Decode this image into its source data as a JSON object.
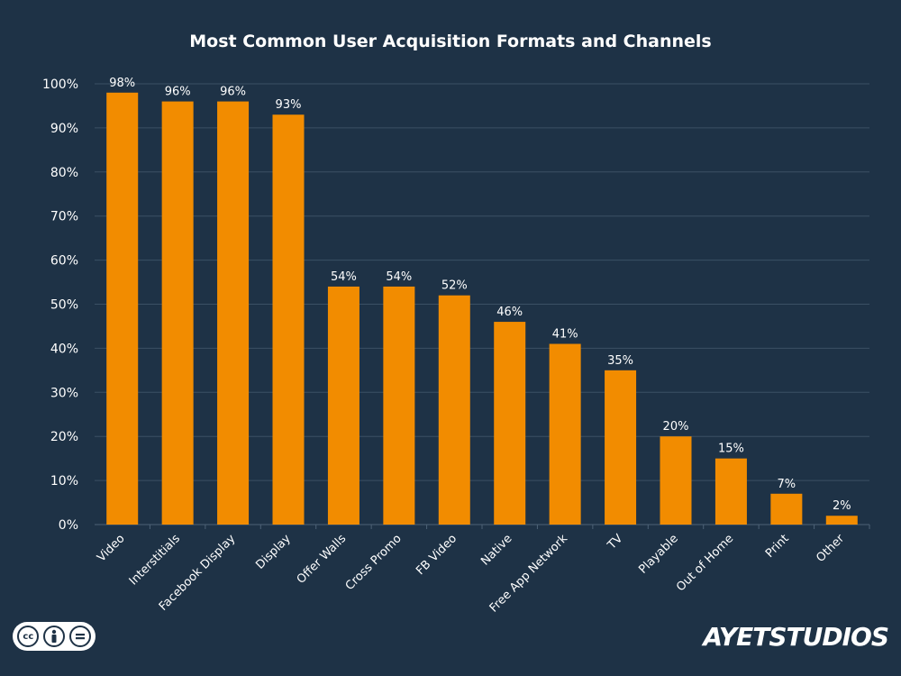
{
  "chart_data": {
    "type": "bar",
    "title": "Most Common User Acquisition Formats and Channels",
    "xlabel": "",
    "ylabel": "",
    "categories": [
      "Video",
      "Interstitials",
      "Facebook Display",
      "Display",
      "Offer Walls",
      "Cross Promo",
      "FB Video",
      "Native",
      "Free App Network",
      "TV",
      "Playable",
      "Out of Home",
      "Print",
      "Other"
    ],
    "values": [
      98,
      96,
      96,
      93,
      54,
      54,
      52,
      46,
      41,
      35,
      20,
      15,
      7,
      2
    ],
    "data_labels": [
      "98%",
      "96%",
      "96%",
      "93%",
      "54%",
      "54%",
      "52%",
      "46%",
      "41%",
      "35%",
      "20%",
      "15%",
      "7%",
      "2%"
    ],
    "ylim": [
      0,
      100
    ],
    "yticks": [
      0,
      10,
      20,
      30,
      40,
      50,
      60,
      70,
      80,
      90,
      100
    ],
    "ytick_labels": [
      "0%",
      "10%",
      "20%",
      "30%",
      "40%",
      "50%",
      "60%",
      "70%",
      "80%",
      "90%",
      "100%"
    ],
    "grid": true,
    "bar_color": "#f28c00",
    "background_color": "#1e3246"
  },
  "footer": {
    "license_icon": "creative-commons-by-nd-icon",
    "brand": "AYETSTUDIOS"
  }
}
